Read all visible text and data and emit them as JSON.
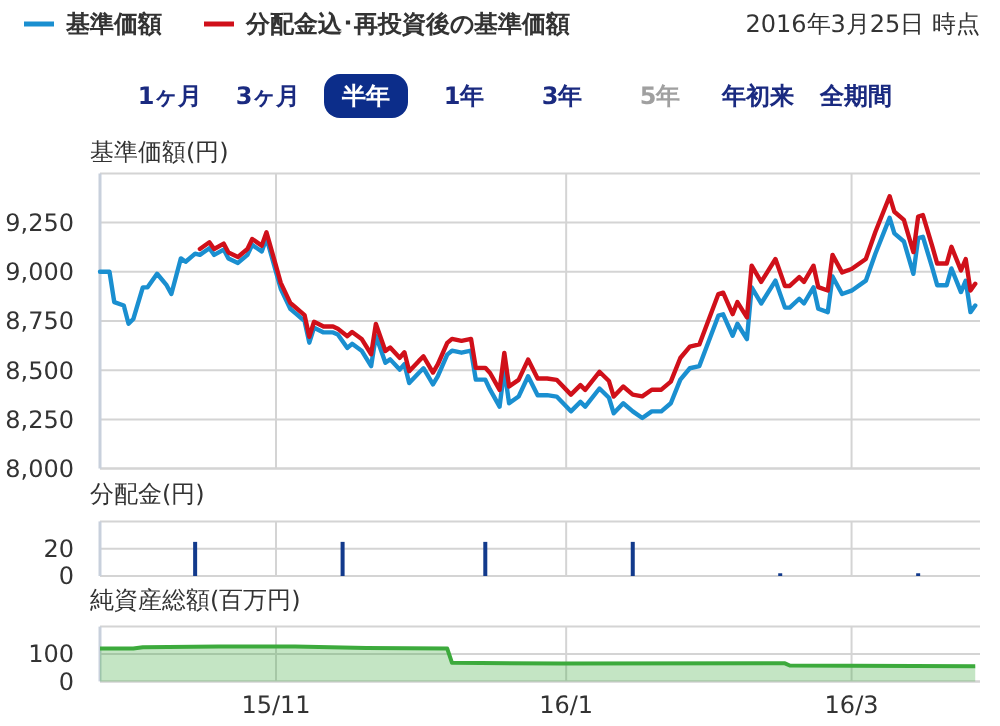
{
  "chart_data": [
    {
      "type": "line",
      "ylabel": "基準価額(円)",
      "legend": "top left",
      "grid": true,
      "tick_labels": "y",
      "annotations": [
        "2016年3月25日 時点",
        "1ヶ月",
        "3ヶ月",
        "半年",
        "1年",
        "3年",
        "5年",
        "年初来",
        "全期間"
      ],
      "xlim": [
        "2015-09-25",
        "2016-03-28"
      ],
      "xticks": [
        {
          "value": "2015-11-01",
          "label": null
        },
        {
          "value": "2016-01-01",
          "label": null
        },
        {
          "value": "2016-03-01",
          "label": null
        }
      ],
      "ylim": [
        8000,
        9500
      ],
      "yticks": [
        {
          "value": 8000,
          "label": "8,000"
        },
        {
          "value": 8250,
          "label": "8,250"
        },
        {
          "value": 8500,
          "label": "8,500"
        },
        {
          "value": 8750,
          "label": "8,750"
        },
        {
          "value": 9000,
          "label": "9,000"
        },
        {
          "value": 9250,
          "label": "9,250"
        }
      ],
      "x": [
        "2015-09-25",
        "2015-09-27",
        "2015-09-28",
        "2015-09-30",
        "2015-10-01",
        "2015-10-02",
        "2015-10-04",
        "2015-10-05",
        "2015-10-07",
        "2015-10-09",
        "2015-10-10",
        "2015-10-12",
        "2015-10-13",
        "2015-10-15",
        "2015-10-16",
        "2015-10-18",
        "2015-10-19",
        "2015-10-21",
        "2015-10-22",
        "2015-10-24",
        "2015-10-26",
        "2015-10-27",
        "2015-10-29",
        "2015-10-30",
        "2015-11-01",
        "2015-11-02",
        "2015-11-04",
        "2015-11-05",
        "2015-11-07",
        "2015-11-08",
        "2015-11-09",
        "2015-11-11",
        "2015-11-13",
        "2015-11-14",
        "2015-11-16",
        "2015-11-17",
        "2015-11-19",
        "2015-11-21",
        "2015-11-22",
        "2015-11-24",
        "2015-11-25",
        "2015-11-27",
        "2015-11-28",
        "2015-11-29",
        "2015-12-01",
        "2015-12-02",
        "2015-12-04",
        "2015-12-05",
        "2015-12-07",
        "2015-12-08",
        "2015-12-10",
        "2015-12-12",
        "2015-12-13",
        "2015-12-15",
        "2015-12-16",
        "2015-12-18",
        "2015-12-19",
        "2015-12-20",
        "2015-12-22",
        "2015-12-24",
        "2015-12-26",
        "2015-12-28",
        "2015-12-30",
        "2016-01-02",
        "2016-01-04",
        "2016-01-05",
        "2016-01-08",
        "2016-01-10",
        "2016-01-11",
        "2016-01-13",
        "2016-01-15",
        "2016-01-17",
        "2016-01-19",
        "2016-01-21",
        "2016-01-23",
        "2016-01-25",
        "2016-01-27",
        "2016-01-29",
        "2016-02-02",
        "2016-02-03",
        "2016-02-05",
        "2016-02-06",
        "2016-02-08",
        "2016-02-09",
        "2016-02-11",
        "2016-02-14",
        "2016-02-16",
        "2016-02-17",
        "2016-02-19",
        "2016-02-20",
        "2016-02-22",
        "2016-02-23",
        "2016-02-25",
        "2016-02-26",
        "2016-02-28",
        "2016-03-01",
        "2016-03-04",
        "2016-03-06",
        "2016-03-09",
        "2016-03-10",
        "2016-03-12",
        "2016-03-14",
        "2016-03-15",
        "2016-03-16",
        "2016-03-18",
        "2016-03-19",
        "2016-03-21",
        "2016-03-22",
        "2016-03-24",
        "2016-03-25",
        "2016-03-26",
        "2016-03-27"
      ],
      "series": [
        {
          "name": "基準価額",
          "color": "#1a8fd0",
          "values": [
            9000,
            9000,
            8846,
            8829,
            8736,
            8760,
            8921,
            8921,
            8990,
            8932,
            8887,
            9068,
            9051,
            9092,
            9086,
            9120,
            9086,
            9113,
            9068,
            9045,
            9086,
            9137,
            9103,
            9171,
            9000,
            8914,
            8812,
            8791,
            8750,
            8640,
            8716,
            8692,
            8692,
            8681,
            8613,
            8634,
            8599,
            8521,
            8675,
            8538,
            8555,
            8503,
            8531,
            8435,
            8486,
            8510,
            8428,
            8469,
            8579,
            8599,
            8589,
            8599,
            8452,
            8452,
            8401,
            8315,
            8503,
            8332,
            8366,
            8469,
            8373,
            8373,
            8366,
            8291,
            8339,
            8315,
            8407,
            8360,
            8281,
            8332,
            8291,
            8257,
            8291,
            8291,
            8332,
            8452,
            8510,
            8521,
            8777,
            8784,
            8675,
            8736,
            8658,
            8921,
            8839,
            8955,
            8818,
            8818,
            8863,
            8839,
            8921,
            8812,
            8795,
            8976,
            8887,
            8904,
            8955,
            9092,
            9274,
            9195,
            9154,
            8990,
            9171,
            9178,
            9017,
            8932,
            8932,
            9017,
            8897,
            8955,
            8795,
            8829
          ]
        },
        {
          "name": "分配金込･再投資後の基準価額",
          "color": "#d0101a",
          "values": [
            null,
            null,
            null,
            null,
            null,
            null,
            null,
            null,
            null,
            null,
            null,
            null,
            null,
            null,
            9116,
            9150,
            9116,
            9143,
            9098,
            9075,
            9116,
            9167,
            9133,
            9201,
            9030,
            8944,
            8842,
            8821,
            8780,
            8670,
            8746,
            8722,
            8722,
            8711,
            8673,
            8694,
            8659,
            8581,
            8735,
            8598,
            8615,
            8563,
            8591,
            8495,
            8546,
            8570,
            8488,
            8529,
            8639,
            8659,
            8649,
            8659,
            8512,
            8512,
            8486,
            8400,
            8588,
            8417,
            8451,
            8554,
            8458,
            8458,
            8451,
            8376,
            8424,
            8400,
            8492,
            8445,
            8366,
            8417,
            8376,
            8367,
            8401,
            8401,
            8442,
            8562,
            8620,
            8631,
            8887,
            8894,
            8785,
            8846,
            8768,
            9031,
            8949,
            9065,
            8928,
            8928,
            8973,
            8949,
            9031,
            8922,
            8905,
            9086,
            8997,
            9014,
            9065,
            9202,
            9384,
            9305,
            9264,
            9100,
            9281,
            9288,
            9127,
            9042,
            9042,
            9127,
            9007,
            9065,
            8905,
            8939
          ]
        }
      ]
    },
    {
      "type": "bar",
      "ylabel": "分配金(円)",
      "grid": true,
      "tick_labels": "y",
      "color": "#123a8c",
      "xlim": [
        "2015-09-25",
        "2016-03-28"
      ],
      "xticks": [
        {
          "value": "2015-11-01",
          "label": null
        },
        {
          "value": "2016-01-01",
          "label": null
        },
        {
          "value": "2016-03-01",
          "label": null
        }
      ],
      "ylim": [
        0,
        40
      ],
      "yticks": [
        0,
        20
      ],
      "x": [
        "2015-10-15",
        "2015-11-15",
        "2015-12-15",
        "2016-01-15",
        "2016-02-15",
        "2016-03-15"
      ],
      "values": [
        25,
        25,
        25,
        25,
        2,
        2
      ]
    },
    {
      "type": "area",
      "ylabel": "純資産総額(百万円)",
      "grid": true,
      "color": "#3caa3c",
      "xlim": [
        "2015-09-25",
        "2016-03-28"
      ],
      "xticks": [
        {
          "value": "2015-11-01",
          "label": "15/11"
        },
        {
          "value": "2016-01-01",
          "label": "16/1"
        },
        {
          "value": "2016-03-01",
          "label": "16/3"
        }
      ],
      "ylim": [
        0,
        200
      ],
      "yticks": [
        0,
        100
      ],
      "x": [
        "2015-09-25",
        "2015-10-02",
        "2015-10-04",
        "2015-10-20",
        "2015-11-05",
        "2015-11-20",
        "2015-12-07",
        "2015-12-08",
        "2015-12-31",
        "2016-02-16",
        "2016-02-17",
        "2016-03-27"
      ],
      "values": [
        120,
        120,
        125,
        127,
        127,
        122,
        120,
        68,
        65,
        66,
        58,
        55
      ]
    }
  ]
}
